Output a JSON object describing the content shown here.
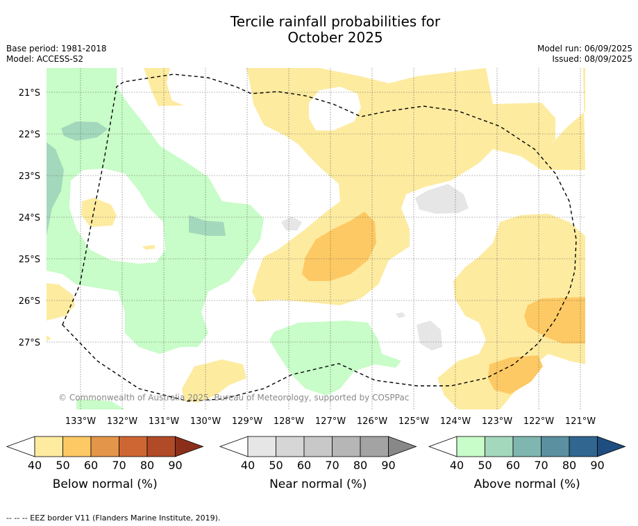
{
  "title_line1": "Tercile rainfall probabilities for",
  "title_line2": "October 2025",
  "base_period": "Base period: 1981-2018",
  "model": "Model: ACCESS-S2",
  "model_run": "Model run: 06/09/2025",
  "issued": "Issued: 08/09/2025",
  "copyright": "© Commonwealth of Australia 2025, Bureau of Meteorology, supported by COSPPac",
  "latitudes": [
    "21°S",
    "22°S",
    "23°S",
    "24°S",
    "25°S",
    "26°S",
    "27°S"
  ],
  "longitudes": [
    "133°W",
    "132°W",
    "131°W",
    "130°W",
    "129°W",
    "128°W",
    "127°W",
    "126°W",
    "125°W",
    "124°W",
    "123°W",
    "122°W",
    "121°W"
  ],
  "colorbars": [
    {
      "label": "Below normal (%)",
      "ticks": [
        "40",
        "50",
        "60",
        "70",
        "80",
        "90"
      ],
      "colors": [
        "#fdeba0",
        "#fdc964",
        "#e39649",
        "#ce6633",
        "#b04a27",
        "#8c2f1a"
      ]
    },
    {
      "label": "Near normal (%)",
      "ticks": [
        "40",
        "50",
        "60",
        "70",
        "80",
        "90"
      ],
      "colors": [
        "#e6e6e6",
        "#d6d6d6",
        "#c8c8c8",
        "#b6b6b6",
        "#a3a3a3",
        "#888888"
      ]
    },
    {
      "label": "Above normal (%)",
      "ticks": [
        "40",
        "50",
        "60",
        "70",
        "80",
        "90"
      ],
      "colors": [
        "#c8fcc8",
        "#a4d8bc",
        "#7fb6b0",
        "#5a90a0",
        "#316690",
        "#204d80"
      ]
    }
  ],
  "footer": "--  --  -- EEZ border V11 (Flanders Marine Institute, 2019)."
}
